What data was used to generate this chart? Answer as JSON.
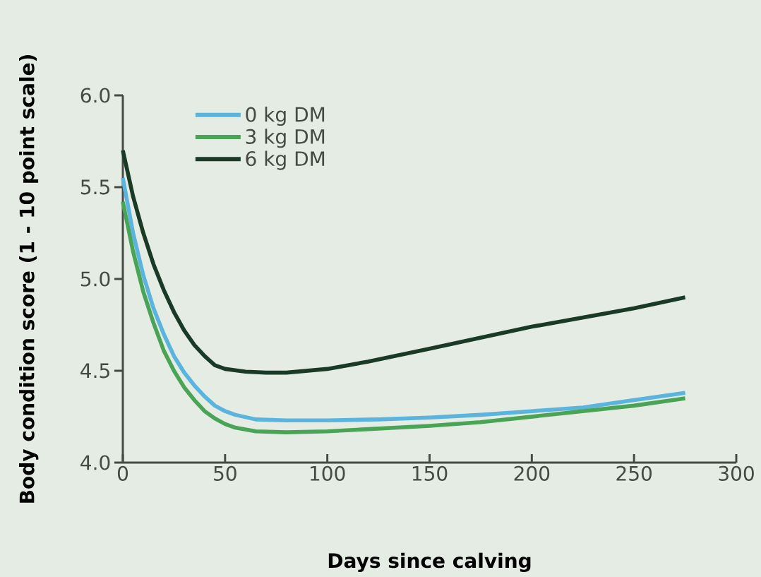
{
  "chart_data": {
    "type": "line",
    "xlabel": "Days since calving",
    "ylabel": "Body condition score (1 - 10 point scale)",
    "xlim": [
      0,
      300
    ],
    "ylim": [
      4.0,
      6.0
    ],
    "xticks": [
      0,
      50,
      100,
      150,
      200,
      250,
      300
    ],
    "yticks": [
      {
        "value": 4.0,
        "label": "4.0"
      },
      {
        "value": 4.5,
        "label": "4.5"
      },
      {
        "value": 5.0,
        "label": "5.0"
      },
      {
        "value": 5.5,
        "label": "5.5"
      },
      {
        "value": 6.0,
        "label": "6.0"
      }
    ],
    "legend": "top left",
    "grid": false,
    "marker": "none",
    "line_style": "solid",
    "series": [
      {
        "name": "0 kg DM",
        "color": "#5ab4de",
        "x": [
          0,
          5,
          10,
          15,
          20,
          25,
          30,
          35,
          40,
          45,
          50,
          55,
          65,
          80,
          100,
          125,
          150,
          175,
          200,
          225,
          250,
          275
        ],
        "values": [
          5.55,
          5.25,
          5.02,
          4.84,
          4.7,
          4.58,
          4.49,
          4.42,
          4.36,
          4.31,
          4.28,
          4.26,
          4.235,
          4.23,
          4.23,
          4.235,
          4.245,
          4.26,
          4.28,
          4.3,
          4.34,
          4.38
        ]
      },
      {
        "name": "3 kg DM",
        "color": "#4aa456",
        "x": [
          0,
          5,
          10,
          15,
          20,
          25,
          30,
          35,
          40,
          45,
          50,
          55,
          65,
          80,
          100,
          125,
          150,
          175,
          200,
          225,
          250,
          275
        ],
        "values": [
          5.42,
          5.15,
          4.93,
          4.76,
          4.61,
          4.5,
          4.41,
          4.34,
          4.28,
          4.24,
          4.21,
          4.19,
          4.17,
          4.165,
          4.17,
          4.185,
          4.2,
          4.22,
          4.25,
          4.28,
          4.31,
          4.35
        ]
      },
      {
        "name": "6 kg DM",
        "color": "#1b3a26",
        "x": [
          0,
          5,
          10,
          15,
          20,
          25,
          30,
          35,
          40,
          45,
          50,
          60,
          70,
          80,
          90,
          100,
          120,
          150,
          175,
          200,
          225,
          250,
          275
        ],
        "values": [
          5.7,
          5.45,
          5.25,
          5.08,
          4.94,
          4.82,
          4.72,
          4.64,
          4.58,
          4.53,
          4.51,
          4.495,
          4.49,
          4.49,
          4.5,
          4.51,
          4.55,
          4.62,
          4.68,
          4.74,
          4.79,
          4.84,
          4.9
        ]
      }
    ]
  }
}
